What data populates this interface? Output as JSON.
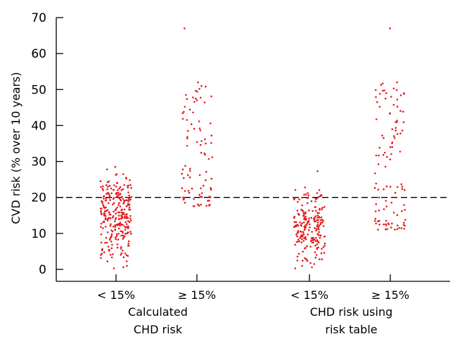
{
  "chart_data": {
    "type": "scatter",
    "ylabel": "CVD risk (% over 10 years)",
    "ylim": [
      -3,
      70
    ],
    "yticks": [
      0,
      10,
      20,
      30,
      40,
      50,
      60,
      70
    ],
    "reference_line": 20,
    "point_color": "#e41a1c",
    "groups": [
      {
        "label_lines": [
          "Calculated",
          "CHD risk"
        ]
      },
      {
        "label_lines": [
          "CHD risk using",
          "risk table"
        ]
      }
    ],
    "categories": [
      "< 15%",
      "≥ 15%",
      "< 15%",
      "≥ 15%"
    ],
    "series": [
      {
        "category_index": 0,
        "y_range": [
          0,
          28
        ],
        "highlights": [
          28.5,
          27.8,
          26.5,
          24.5,
          22.9,
          22.4,
          22.0,
          21.3,
          0.3,
          0.6,
          1.0
        ]
      },
      {
        "category_index": 1,
        "y_range": [
          17.5,
          52
        ],
        "highlights": [
          67.0,
          52.0,
          51.0,
          50.2,
          47.8,
          47.5,
          47.0,
          45.2,
          43.4,
          38.5,
          37.2,
          36.8,
          18.0
        ]
      },
      {
        "category_index": 2,
        "y_range": [
          0,
          23
        ],
        "highlights": [
          27.3,
          22.8,
          22.1,
          21.2,
          20.6,
          0.3,
          0.6,
          1.0
        ]
      },
      {
        "category_index": 3,
        "y_range": [
          11,
          52
        ],
        "highlights": [
          67.0,
          52.0,
          50.3,
          48.8,
          48.0,
          47.5,
          46.5,
          45.2,
          43.3,
          38.6,
          37.2,
          36.5,
          12.5,
          11.2
        ]
      }
    ]
  }
}
